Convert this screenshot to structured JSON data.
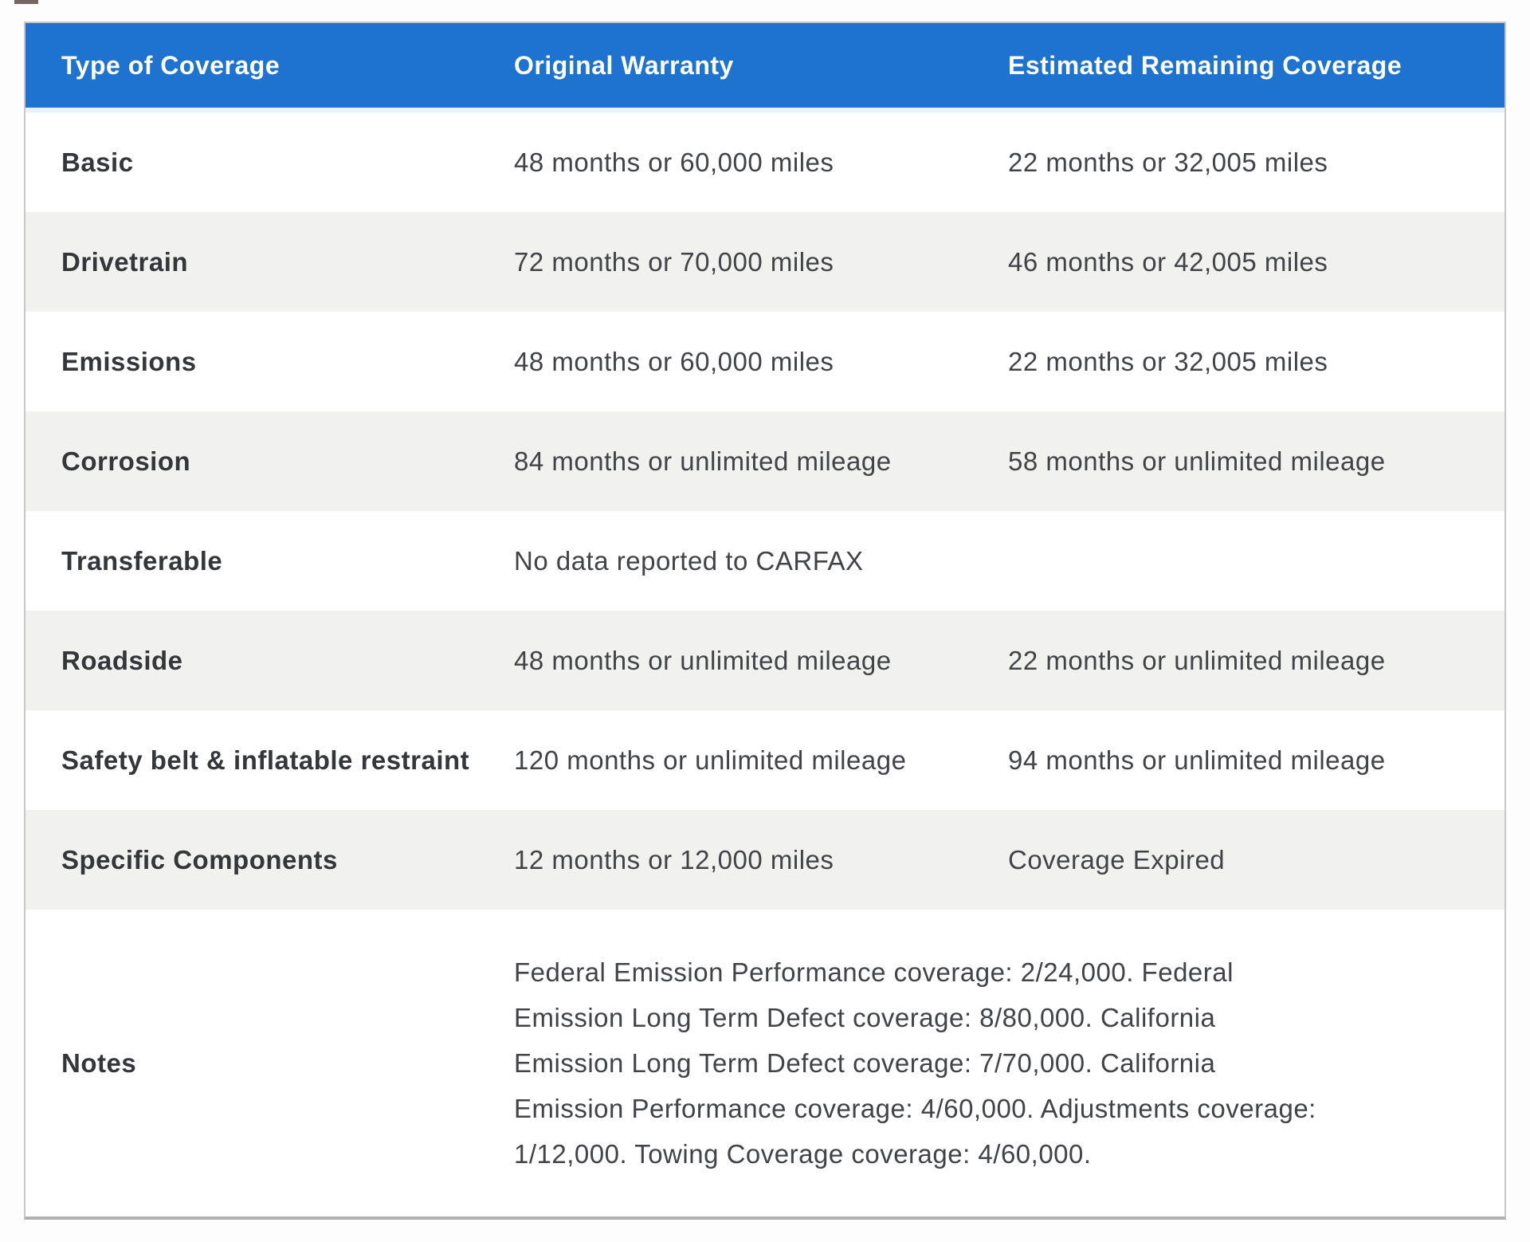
{
  "table": {
    "header": {
      "type_of_coverage": "Type of Coverage",
      "original_warranty": "Original Warranty",
      "estimated_remaining": "Estimated Remaining Coverage"
    },
    "rows": [
      {
        "type": "Basic",
        "original": "48 months or 60,000 miles",
        "remaining": "22 months or 32,005 miles"
      },
      {
        "type": "Drivetrain",
        "original": "72 months or 70,000 miles",
        "remaining": "46 months or 42,005 miles"
      },
      {
        "type": "Emissions",
        "original": "48 months or 60,000 miles",
        "remaining": "22 months or 32,005 miles"
      },
      {
        "type": "Corrosion",
        "original": "84 months or unlimited mileage",
        "remaining": "58 months or unlimited mileage"
      },
      {
        "type": "Transferable",
        "original": "No data reported to CARFAX",
        "remaining": ""
      },
      {
        "type": "Roadside",
        "original": "48 months or unlimited mileage",
        "remaining": "22 months or unlimited mileage"
      },
      {
        "type": "Safety belt & inflatable restraint",
        "original": "120 months or unlimited mileage",
        "remaining": "94 months or unlimited mileage"
      },
      {
        "type": "Specific Components",
        "original": "12 months or 12,000 miles",
        "remaining": "Coverage Expired"
      },
      {
        "type": "Notes",
        "notes": "Federal Emission Performance coverage: 2/24,000. Federal Emission Long Term Defect coverage: 8/80,000. California Emission Long Term Defect coverage: 7/70,000. California Emission Performance coverage: 4/60,000. Adjustments coverage: 1/12,000. Towing Coverage coverage: 4/60,000."
      }
    ],
    "colors": {
      "header_bg": "#1e73d0",
      "header_text": "#ffffff",
      "row_bg": "#ffffff",
      "row_alt_bg": "#f1f1f0",
      "label_text": "#343639",
      "value_text": "#414347",
      "border": "#c6c6c6"
    }
  }
}
